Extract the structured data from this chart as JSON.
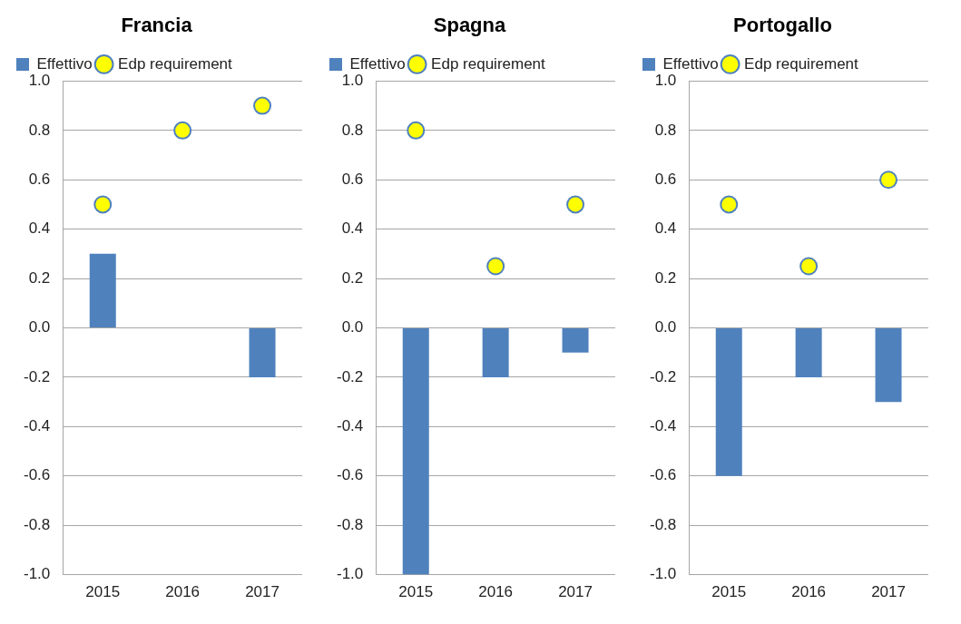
{
  "chart_data": [
    {
      "type": "bar",
      "title": "Francia",
      "categories": [
        "2015",
        "2016",
        "2017"
      ],
      "series": [
        {
          "name": "Effettivo",
          "color": "#4f81bd",
          "values": [
            0.3,
            0,
            -0.2
          ]
        },
        {
          "name": "Edp requirement",
          "type": "scatter",
          "color": "#ffff00",
          "values": [
            0.5,
            0.8,
            0.9
          ]
        }
      ],
      "ylim": [
        -1,
        1
      ],
      "yticks": [
        {
          "value": -1,
          "label": "-1.0"
        },
        {
          "value": -0.8,
          "label": "-0.8"
        },
        {
          "value": -0.6,
          "label": "-0.6"
        },
        {
          "value": -0.4,
          "label": "-0.4"
        },
        {
          "value": -0.2,
          "label": "-0.2"
        },
        {
          "value": 0,
          "label": "0.0"
        },
        {
          "value": 0.2,
          "label": "0.2"
        },
        {
          "value": 0.4,
          "label": "0.4"
        },
        {
          "value": 0.6,
          "label": "0.6"
        },
        {
          "value": 0.8,
          "label": "0.8"
        },
        {
          "value": 1,
          "label": "1.0"
        }
      ],
      "grid": "y",
      "legend": "top",
      "marker": "circle"
    },
    {
      "type": "bar",
      "title": "Spagna",
      "categories": [
        "2015",
        "2016",
        "2017"
      ],
      "series": [
        {
          "name": "Effettivo",
          "color": "#4f81bd",
          "values": [
            -1,
            -0.2,
            -0.1
          ]
        },
        {
          "name": "Edp requirement",
          "type": "scatter",
          "color": "#ffff00",
          "values": [
            0.8,
            0.25,
            0.5
          ]
        }
      ],
      "ylim": [
        -1,
        1
      ],
      "yticks": [
        {
          "value": -1,
          "label": "-1.0"
        },
        {
          "value": -0.8,
          "label": "-0.8"
        },
        {
          "value": -0.6,
          "label": "-0.6"
        },
        {
          "value": -0.4,
          "label": "-0.4"
        },
        {
          "value": -0.2,
          "label": "-0.2"
        },
        {
          "value": 0,
          "label": "0.0"
        },
        {
          "value": 0.2,
          "label": "0.2"
        },
        {
          "value": 0.4,
          "label": "0.4"
        },
        {
          "value": 0.6,
          "label": "0.6"
        },
        {
          "value": 0.8,
          "label": "0.8"
        },
        {
          "value": 1,
          "label": "1.0"
        }
      ],
      "grid": "y",
      "legend": "top",
      "marker": "circle"
    },
    {
      "type": "bar",
      "title": "Portogallo",
      "categories": [
        "2015",
        "2016",
        "2017"
      ],
      "series": [
        {
          "name": "Effettivo",
          "color": "#4f81bd",
          "values": [
            -0.6,
            -0.2,
            -0.3
          ]
        },
        {
          "name": "Edp requirement",
          "type": "scatter",
          "color": "#ffff00",
          "values": [
            0.5,
            0.25,
            0.6
          ]
        }
      ],
      "ylim": [
        -1,
        1
      ],
      "yticks": [
        {
          "value": -1,
          "label": "-1.0"
        },
        {
          "value": -0.8,
          "label": "-0.8"
        },
        {
          "value": -0.6,
          "label": "-0.6"
        },
        {
          "value": -0.4,
          "label": "-0.4"
        },
        {
          "value": -0.2,
          "label": "-0.2"
        },
        {
          "value": 0,
          "label": "0.0"
        },
        {
          "value": 0.2,
          "label": "0.2"
        },
        {
          "value": 0.4,
          "label": "0.4"
        },
        {
          "value": 0.6,
          "label": "0.6"
        },
        {
          "value": 0.8,
          "label": "0.8"
        },
        {
          "value": 1,
          "label": "1.0"
        }
      ],
      "grid": "y",
      "legend": "top",
      "marker": "circle"
    }
  ]
}
